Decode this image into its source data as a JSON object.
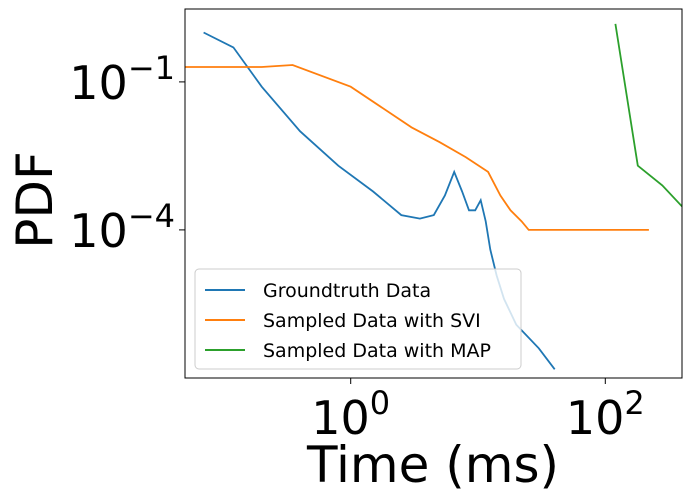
{
  "chart_data": {
    "type": "line",
    "xscale": "log",
    "yscale": "log",
    "xlim": [
      0.05,
      400
    ],
    "ylim": [
      1e-07,
      3
    ],
    "xlabel": "Time (ms)",
    "ylabel": "PDF",
    "grid": false,
    "legend_position": "lower-left",
    "x_ticks": [
      {
        "value": 1,
        "base": "10",
        "exp": "0"
      },
      {
        "value": 100,
        "base": "10",
        "exp": "2"
      }
    ],
    "y_ticks": [
      {
        "value": 0.1,
        "base": "10",
        "exp": "−1"
      },
      {
        "value": 0.0001,
        "base": "10",
        "exp": "−4"
      }
    ],
    "series": [
      {
        "name": "Groundtruth Data",
        "color": "#1f77b4",
        "x": [
          0.07,
          0.12,
          0.2,
          0.4,
          0.8,
          1.5,
          2.5,
          3.5,
          4.5,
          5.5,
          6.5,
          7.5,
          8.5,
          9.5,
          10.5,
          11.5,
          12.5,
          14,
          16,
          20,
          30,
          40
        ],
        "y": [
          1.0,
          0.5,
          0.08,
          0.01,
          0.002,
          0.0006,
          0.0002,
          0.00017,
          0.0002,
          0.0005,
          0.0015,
          0.0006,
          0.00025,
          0.00025,
          0.0004,
          0.00015,
          4e-05,
          1.2e-05,
          4e-06,
          1.2e-06,
          4e-07,
          1.5e-07
        ]
      },
      {
        "name": "Sampled Data with SVI",
        "color": "#ff7f0e",
        "x": [
          0.05,
          0.1,
          0.2,
          0.35,
          1.0,
          3.0,
          5.0,
          8.0,
          12.0,
          15.0,
          18.0,
          22.0,
          25.0,
          30.0,
          40.0,
          60.0,
          100.0,
          150.0,
          220.0
        ],
        "y": [
          0.2,
          0.2,
          0.2,
          0.22,
          0.08,
          0.012,
          0.006,
          0.003,
          0.0015,
          0.0005,
          0.00025,
          0.00015,
          0.0001,
          0.0001,
          0.0001,
          0.0001,
          0.0001,
          0.0001,
          0.0001
        ]
      },
      {
        "name": "Sampled Data with MAP",
        "color": "#2ca02c",
        "x": [
          120,
          180,
          280,
          400
        ],
        "y": [
          1.5,
          0.002,
          0.0008,
          0.0003
        ]
      }
    ]
  }
}
